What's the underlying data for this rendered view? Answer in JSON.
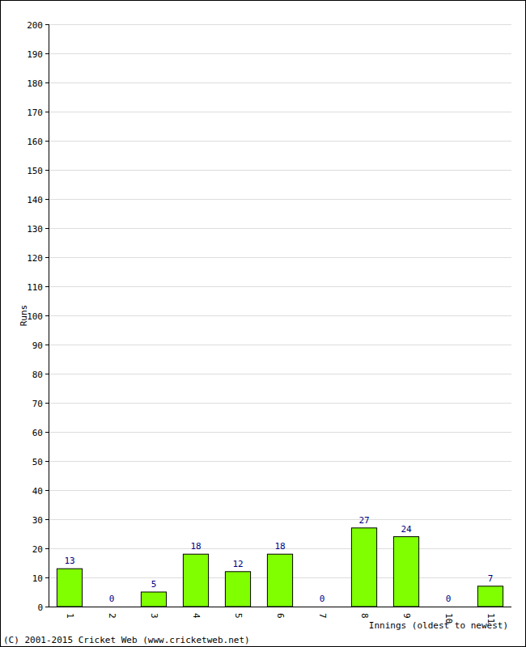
{
  "chart_data": {
    "type": "bar",
    "categories": [
      "1",
      "2",
      "3",
      "4",
      "5",
      "6",
      "7",
      "8",
      "9",
      "10",
      "11"
    ],
    "values": [
      13,
      0,
      5,
      18,
      12,
      18,
      0,
      27,
      24,
      0,
      7
    ],
    "color": "#80ff00",
    "ylim": [
      0,
      200
    ],
    "yticks": [
      0,
      10,
      20,
      30,
      40,
      50,
      60,
      70,
      80,
      90,
      100,
      110,
      120,
      130,
      140,
      150,
      160,
      170,
      180,
      190,
      200
    ],
    "grid": true,
    "data_labels": true,
    "x_label": "Innings (oldest to newest)",
    "y_label": "Runs",
    "annotations": [
      "(C) 2001-2015 Cricket Web (www.cricketweb.net)"
    ]
  }
}
